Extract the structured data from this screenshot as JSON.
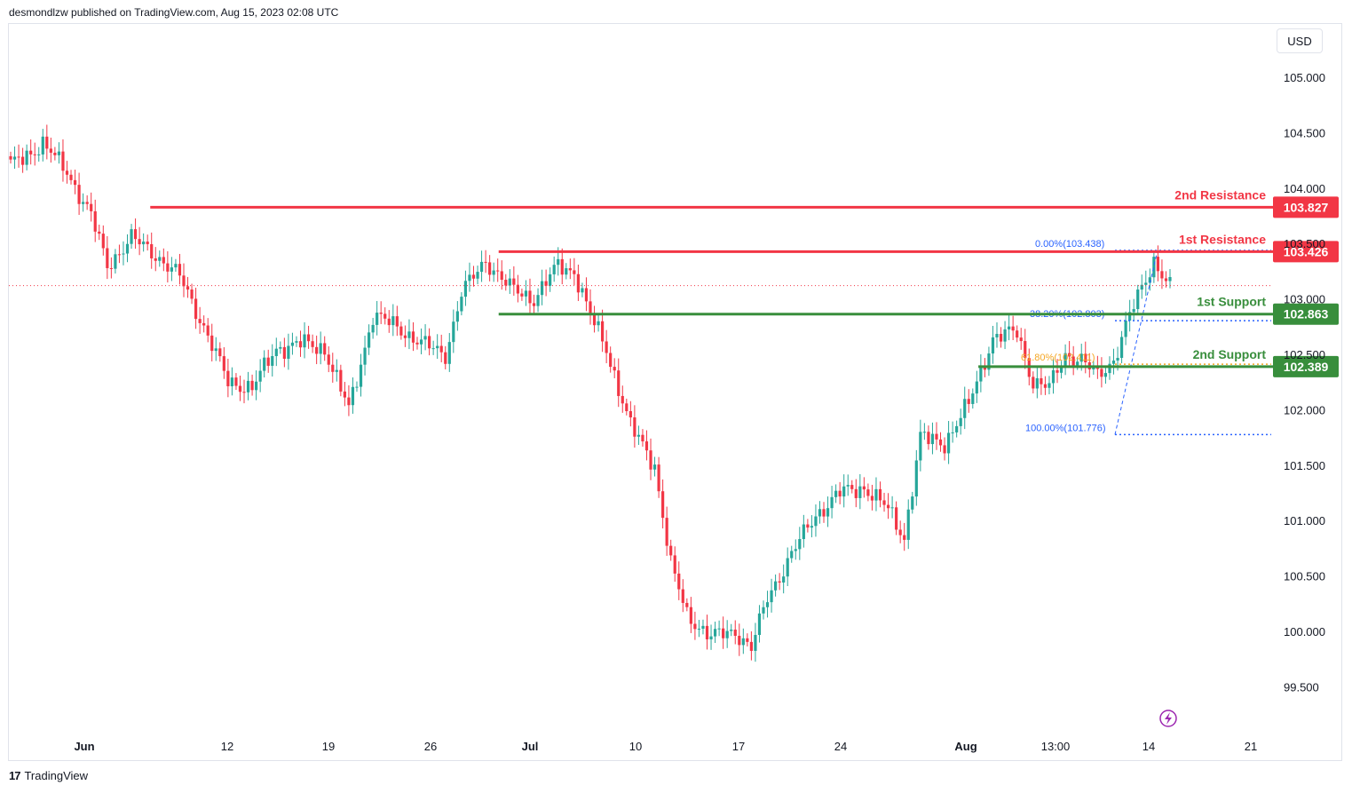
{
  "header": {
    "published_by": "desmondlzw published on TradingView.com, Aug 15, 2023 02:08 UTC"
  },
  "currency_button": "USD",
  "brand": {
    "logo": "17",
    "name": "TradingView"
  },
  "colors": {
    "up": "#26a69a",
    "down": "#f23645",
    "resistance": "#f23645",
    "support": "#388e3c",
    "fib": "#2962ff",
    "fib_mid": "#f5a623"
  },
  "chart_data": {
    "type": "candlestick",
    "title": "",
    "ylim": [
      99.2,
      105.55
    ],
    "y_ticks": [
      "105.000",
      "104.500",
      "104.000",
      "103.500",
      "103.000",
      "102.500",
      "102.000",
      "101.500",
      "101.000",
      "100.500",
      "100.000",
      "99.500"
    ],
    "y_tick_values": [
      105.0,
      104.5,
      104.0,
      103.5,
      103.0,
      102.5,
      102.0,
      101.5,
      101.0,
      100.5,
      100.0,
      99.5
    ],
    "x_labels": [
      "Jun",
      "12",
      "19",
      "26",
      "Jul",
      "10",
      "17",
      "24",
      "Aug",
      "13:00",
      "14",
      "21"
    ],
    "x_label_bold": [
      true,
      false,
      false,
      false,
      true,
      false,
      false,
      false,
      true,
      false,
      false,
      false
    ],
    "price_anchors": [
      [
        0,
        104.2
      ],
      [
        8,
        104.4
      ],
      [
        14,
        104.15
      ],
      [
        20,
        103.75
      ],
      [
        24,
        103.3
      ],
      [
        30,
        103.55
      ],
      [
        36,
        103.4
      ],
      [
        42,
        103.2
      ],
      [
        48,
        102.75
      ],
      [
        54,
        102.25
      ],
      [
        60,
        102.2
      ],
      [
        66,
        102.55
      ],
      [
        72,
        102.6
      ],
      [
        78,
        102.55
      ],
      [
        84,
        102.0
      ],
      [
        90,
        102.85
      ],
      [
        96,
        102.75
      ],
      [
        102,
        102.6
      ],
      [
        108,
        102.5
      ],
      [
        112,
        103.05
      ],
      [
        118,
        103.35
      ],
      [
        124,
        103.1
      ],
      [
        130,
        103.0
      ],
      [
        136,
        103.3
      ],
      [
        140,
        103.25
      ],
      [
        144,
        102.85
      ],
      [
        148,
        102.55
      ],
      [
        154,
        101.85
      ],
      [
        160,
        101.5
      ],
      [
        164,
        100.6
      ],
      [
        168,
        100.15
      ],
      [
        174,
        99.95
      ],
      [
        180,
        100.0
      ],
      [
        184,
        99.85
      ],
      [
        188,
        100.3
      ],
      [
        194,
        100.7
      ],
      [
        200,
        101.05
      ],
      [
        206,
        101.25
      ],
      [
        212,
        101.3
      ],
      [
        218,
        101.1
      ],
      [
        222,
        100.85
      ],
      [
        226,
        101.75
      ],
      [
        232,
        101.7
      ],
      [
        238,
        102.05
      ],
      [
        244,
        102.65
      ],
      [
        250,
        102.7
      ],
      [
        254,
        102.25
      ],
      [
        258,
        102.2
      ],
      [
        262,
        102.5
      ],
      [
        266,
        102.45
      ],
      [
        270,
        102.3
      ],
      [
        274,
        102.45
      ],
      [
        278,
        102.85
      ],
      [
        284,
        103.35
      ],
      [
        288,
        103.1
      ]
    ],
    "candle_count": 289,
    "levels": [
      {
        "label": "2nd Resistance",
        "value": 103.827,
        "badge": "103.827",
        "kind": "resistance",
        "x_start": 0.112
      },
      {
        "label": "1st Resistance",
        "value": 103.426,
        "badge": "103.426",
        "kind": "resistance",
        "x_start": 0.388
      },
      {
        "label": "1st Support",
        "value": 102.863,
        "badge": "102.863",
        "kind": "support",
        "x_start": 0.388
      },
      {
        "label": "2nd Support",
        "value": 102.389,
        "badge": "102.389",
        "kind": "support",
        "x_start": 0.768
      }
    ],
    "fibonacci": [
      {
        "label": "0.00%(103.438)",
        "value": 103.438
      },
      {
        "label": "38.20%(102.803)",
        "value": 102.803
      },
      {
        "label": "61.80%(102.411)",
        "value": 102.411
      },
      {
        "label": "100.00%(101.776)",
        "value": 101.776
      }
    ],
    "last_price": 103.12
  }
}
